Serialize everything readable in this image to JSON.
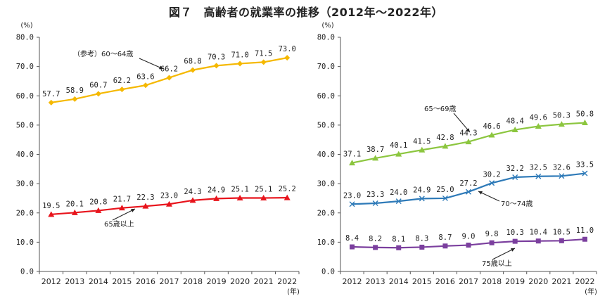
{
  "figure_title": "図７　高齢者の就業率の推移（2012年～2022年）",
  "chart_data": [
    {
      "type": "line",
      "y_unit": "(%)",
      "x_unit": "(年)",
      "ylim": [
        0,
        80
      ],
      "yticks": [
        "0.0",
        "10.0",
        "20.0",
        "30.0",
        "40.0",
        "50.0",
        "60.0",
        "70.0",
        "80.0"
      ],
      "categories": [
        "2012",
        "2013",
        "2014",
        "2015",
        "2016",
        "2017",
        "2018",
        "2019",
        "2020",
        "2021",
        "2022"
      ],
      "grid": false,
      "series": [
        {
          "name": "（参考）60～64歳",
          "color": "#f5b800",
          "marker": "diamond",
          "values": [
            57.7,
            58.9,
            60.7,
            62.2,
            63.6,
            66.2,
            68.8,
            70.3,
            71.0,
            71.5,
            73.0
          ],
          "labels": [
            "57.7",
            "58.9",
            "60.7",
            "62.2",
            "63.6",
            "66.2",
            "68.8",
            "70.3",
            "71.0",
            "71.5",
            "73.0"
          ]
        },
        {
          "name": "65歳以上",
          "color": "#e8141c",
          "marker": "triangle",
          "values": [
            19.5,
            20.1,
            20.8,
            21.7,
            22.3,
            23.0,
            24.3,
            24.9,
            25.1,
            25.1,
            25.2
          ],
          "labels": [
            "19.5",
            "20.1",
            "20.8",
            "21.7",
            "22.3",
            "23.0",
            "24.3",
            "24.9",
            "25.1",
            "25.1",
            "25.2"
          ]
        }
      ]
    },
    {
      "type": "line",
      "y_unit": "(%)",
      "x_unit": "(年)",
      "ylim": [
        0,
        80
      ],
      "yticks": [
        "0.0",
        "10.0",
        "20.0",
        "30.0",
        "40.0",
        "50.0",
        "60.0",
        "70.0",
        "80.0"
      ],
      "categories": [
        "2012",
        "2013",
        "2014",
        "2015",
        "2016",
        "2017",
        "2018",
        "2019",
        "2020",
        "2021",
        "2022"
      ],
      "grid": false,
      "series": [
        {
          "name": "65～69歳",
          "color": "#8cc63f",
          "marker": "triangle",
          "values": [
            37.1,
            38.7,
            40.1,
            41.5,
            42.8,
            44.3,
            46.6,
            48.4,
            49.6,
            50.3,
            50.8
          ],
          "labels": [
            "37.1",
            "38.7",
            "40.1",
            "41.5",
            "42.8",
            "44.3",
            "46.6",
            "48.4",
            "49.6",
            "50.3",
            "50.8"
          ]
        },
        {
          "name": "70～74歳",
          "color": "#2e7ab8",
          "marker": "x",
          "values": [
            23.0,
            23.3,
            24.0,
            24.9,
            25.0,
            27.2,
            30.2,
            32.2,
            32.5,
            32.6,
            33.5
          ],
          "labels": [
            "23.0",
            "23.3",
            "24.0",
            "24.9",
            "25.0",
            "27.2",
            "30.2",
            "32.2",
            "32.5",
            "32.6",
            "33.5"
          ]
        },
        {
          "name": "75歳以上",
          "color": "#7b3f9e",
          "marker": "square",
          "values": [
            8.4,
            8.2,
            8.1,
            8.3,
            8.7,
            9.0,
            9.8,
            10.3,
            10.4,
            10.5,
            11.0
          ],
          "labels": [
            "8.4",
            "8.2",
            "8.1",
            "8.3",
            "8.7",
            "9.0",
            "9.8",
            "10.3",
            "10.4",
            "10.5",
            "11.0"
          ]
        }
      ]
    }
  ]
}
